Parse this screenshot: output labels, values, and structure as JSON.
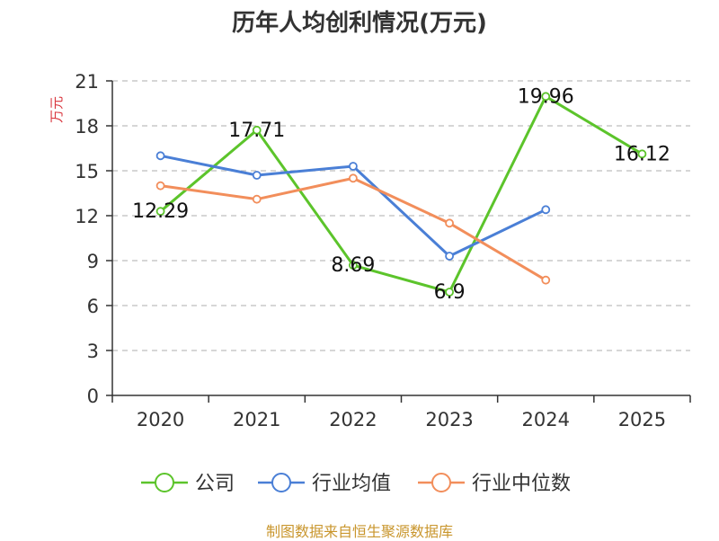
{
  "chart_data": {
    "type": "line",
    "title": "历年人均创利情况(万元)",
    "ylabel": "万元",
    "xlabel": "",
    "categories": [
      "2020",
      "2021",
      "2022",
      "2023",
      "2024",
      "2025"
    ],
    "ylim": [
      0,
      21
    ],
    "yticks": [
      0,
      3,
      6,
      9,
      12,
      15,
      18,
      21
    ],
    "grid": true,
    "legend_position": "bottom",
    "series": [
      {
        "name": "公司",
        "color": "#5cc42b",
        "values": [
          12.29,
          17.71,
          8.69,
          6.9,
          19.96,
          16.12
        ],
        "show_labels": true
      },
      {
        "name": "行业均值",
        "color": "#4a7fd6",
        "values": [
          16.0,
          14.7,
          15.3,
          9.3,
          12.4,
          null
        ],
        "show_labels": false
      },
      {
        "name": "行业中位数",
        "color": "#f28e5b",
        "values": [
          14.0,
          13.1,
          14.5,
          11.5,
          7.7,
          null
        ],
        "show_labels": false
      }
    ]
  },
  "colors": {
    "ylabel": "#d9363e",
    "source": "#c9962d",
    "axis": "#333333",
    "grid": "#c8c8c8"
  },
  "source_text": "制图数据来自恒生聚源数据库"
}
